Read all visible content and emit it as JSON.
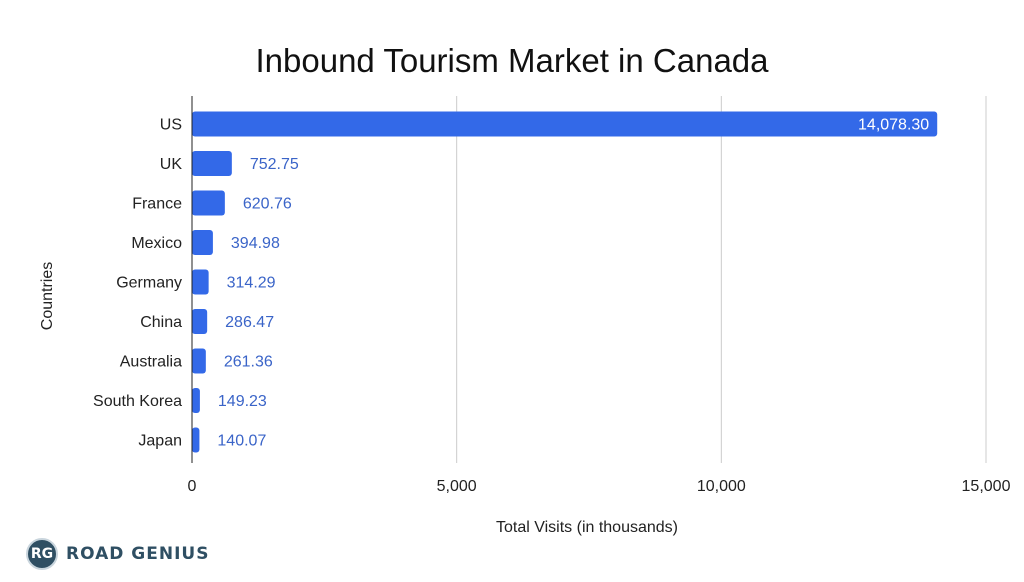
{
  "chart_data": {
    "type": "bar",
    "orientation": "horizontal",
    "title": "Inbound Tourism Market in Canada",
    "xlabel": "Total Visits (in thousands)",
    "ylabel": "Countries",
    "categories": [
      "US",
      "UK",
      "France",
      "Mexico",
      "Germany",
      "China",
      "Australia",
      "South Korea",
      "Japan"
    ],
    "values": [
      14078.3,
      752.75,
      620.76,
      394.98,
      314.29,
      286.47,
      261.36,
      149.23,
      140.07
    ],
    "value_labels": [
      "14,078.30",
      "752.75",
      "620.76",
      "394.98",
      "314.29",
      "286.47",
      "261.36",
      "149.23",
      "140.07"
    ],
    "xlim": [
      0,
      15000
    ],
    "xticks": [
      0,
      5000,
      10000,
      15000
    ],
    "xtick_labels": [
      "0",
      "5,000",
      "10,000",
      "15,000"
    ],
    "grid": true,
    "legend": "none",
    "colors": {
      "bar": "#3369e8",
      "label_outside": "#3a64c8",
      "label_inside": "#ffffff",
      "grid": "#cccccc"
    }
  },
  "brand": {
    "badge": "RG",
    "name": "ROAD GENIUS"
  }
}
